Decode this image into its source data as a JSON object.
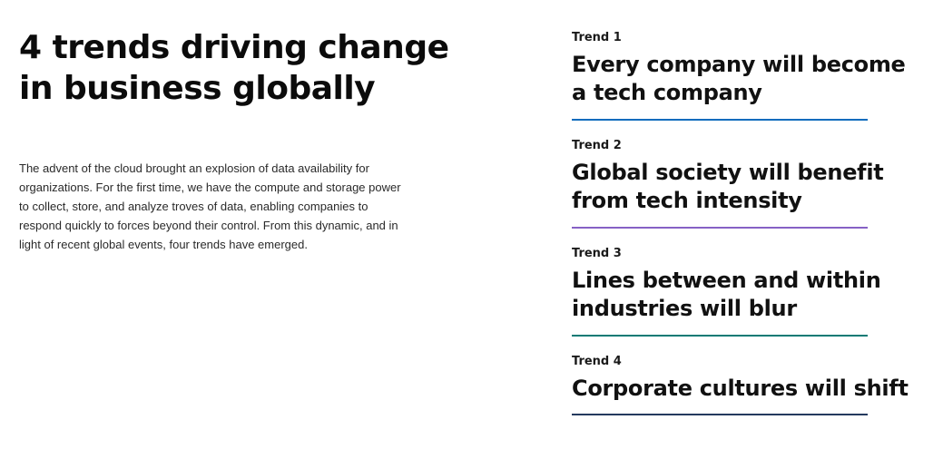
{
  "headline": {
    "line1": "4 trends driving change",
    "line2": "in business globally"
  },
  "intro": {
    "lines": [
      "The advent of the cloud brought an explosion of data availability for",
      "organizations. For the first time, we have the compute and storage power",
      "to collect, store, and analyze troves of data, enabling companies to",
      "respond quickly to forces beyond their control. From this dynamic, and in",
      "light of recent global events, four trends have emerged."
    ]
  },
  "trends": [
    {
      "label": "Trend 1",
      "title_line1": "Every company will become",
      "title_line2": "a tech company",
      "rule_color": "#0f6cbd"
    },
    {
      "label": "Trend 2",
      "title_line1": "Global society will benefit",
      "title_line2": "from tech intensity",
      "rule_color": "#8661c5"
    },
    {
      "label": "Trend 3",
      "title_line1": "Lines between and within",
      "title_line2": "industries will blur",
      "rule_color": "#0b7a75"
    },
    {
      "label": "Trend 4",
      "title_line1": "Corporate cultures will shift",
      "rule_color": "#243a5e"
    }
  ]
}
